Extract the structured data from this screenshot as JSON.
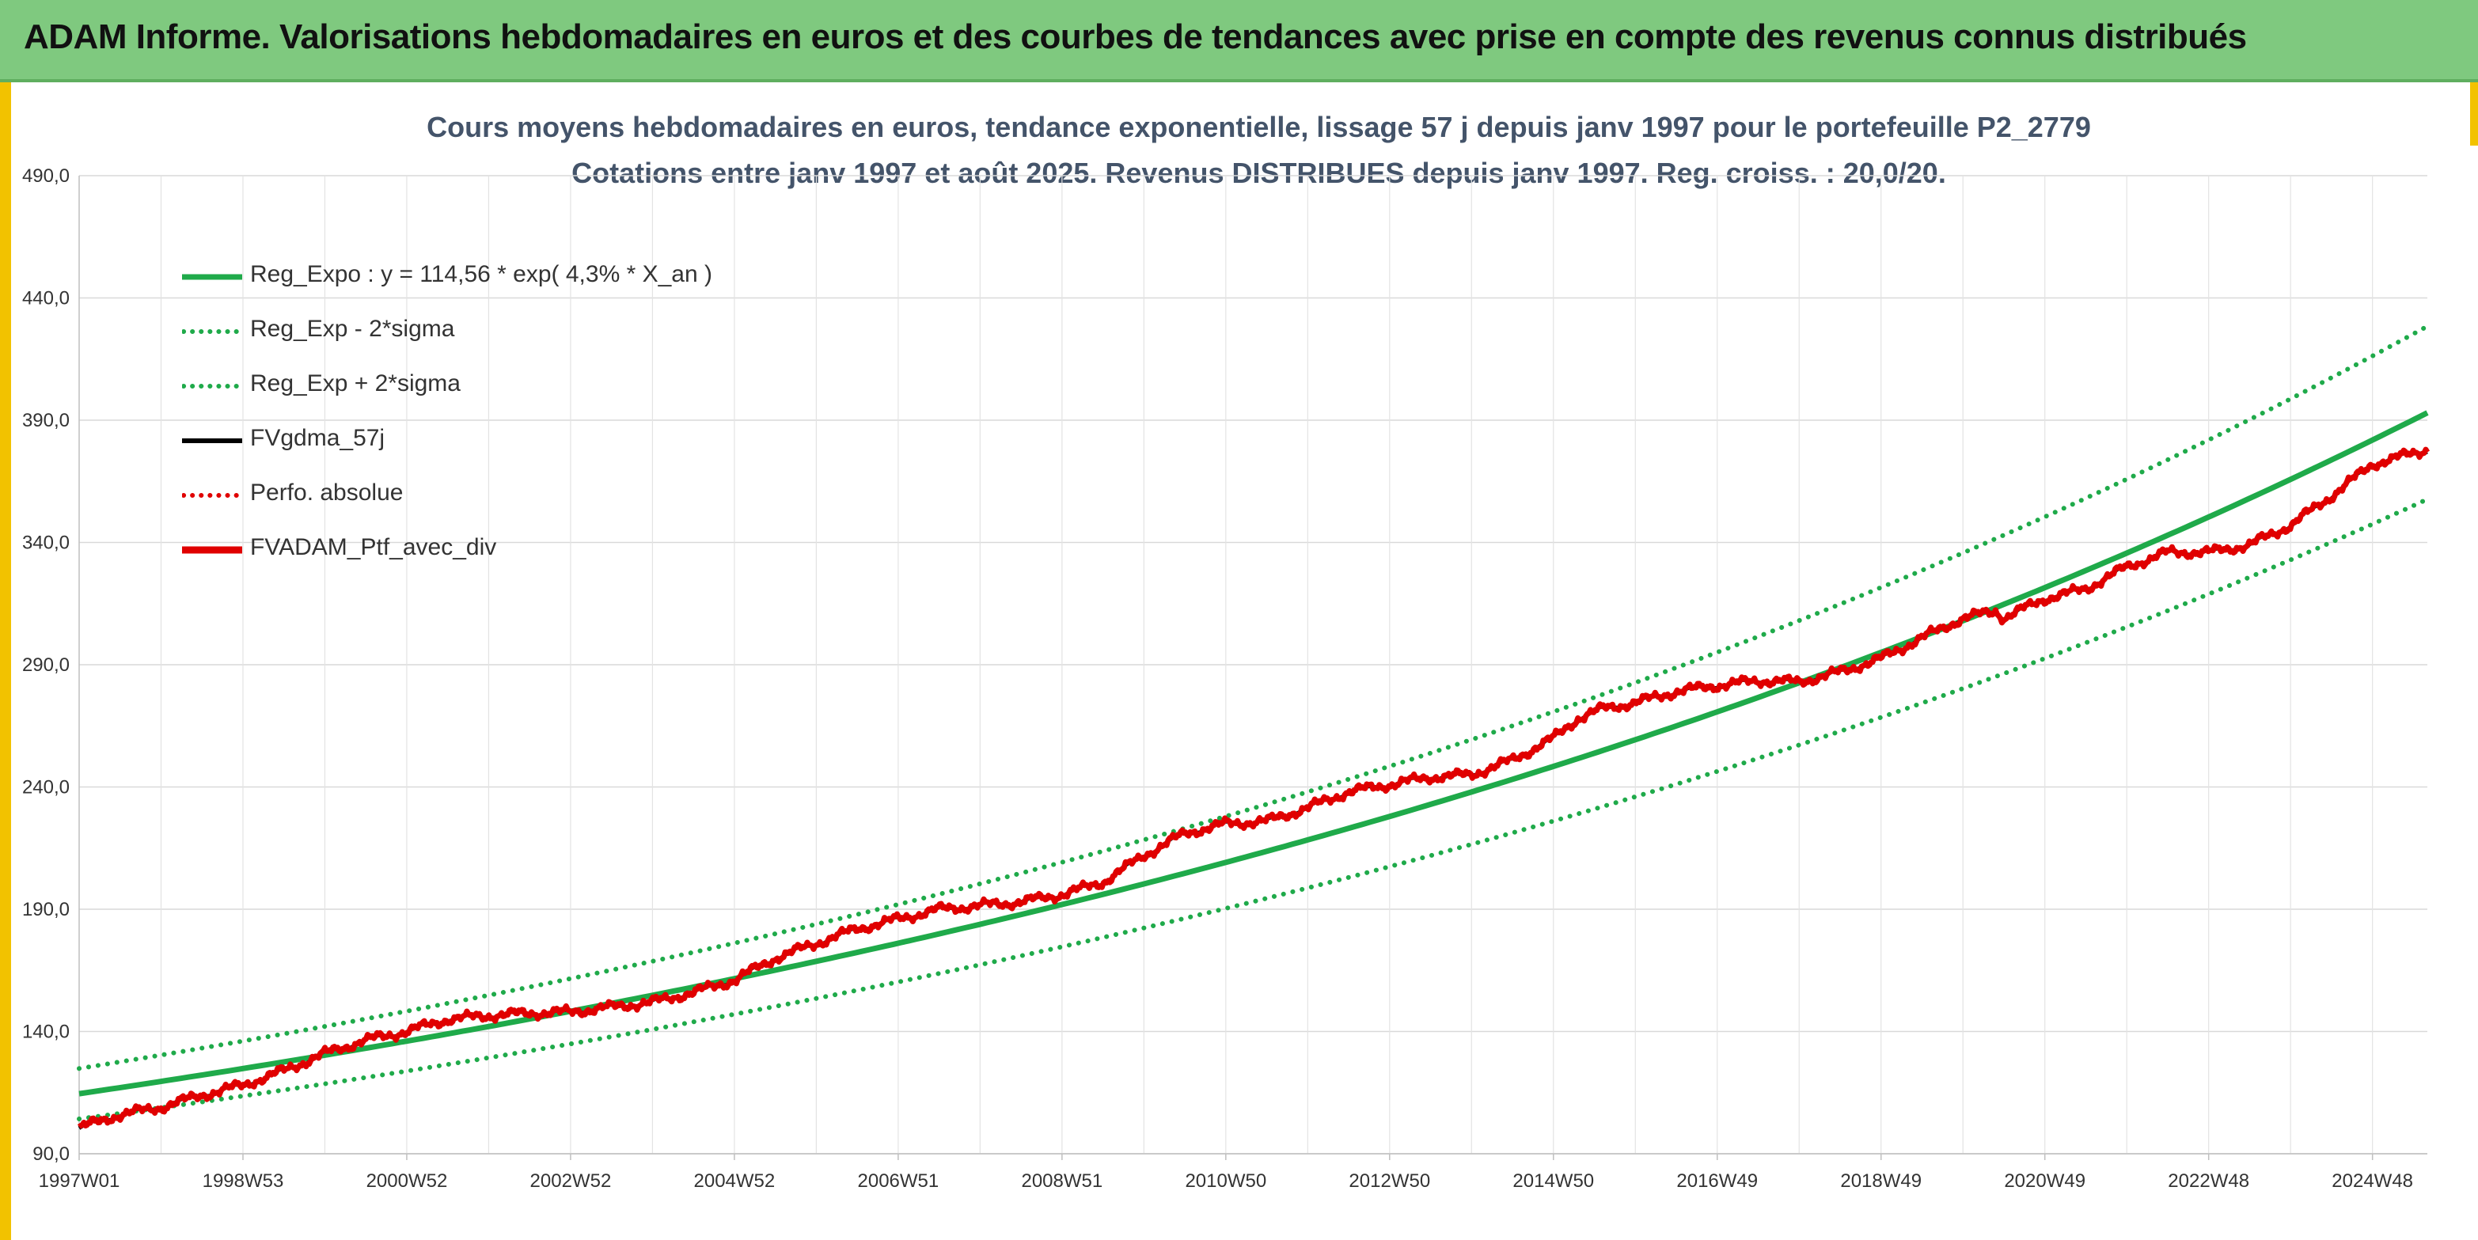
{
  "banner": {
    "title": "ADAM Informe. Valorisations hebdomadaires en euros et des courbes de tendances avec prise en compte des revenus connus distribués"
  },
  "chart_data": {
    "type": "line",
    "title": "Cours moyens hebdomadaires en euros, tendance exponentielle, lissage 57 j depuis janv 1997 pour le portefeuille P2_2779",
    "subtitle": "Cotations entre janv 1997 et août 2025. Revenus DISTRIBUES depuis janv 1997. Reg. croiss. : 20,0/20.",
    "xlabel": "",
    "ylabel": "",
    "ylim": [
      90,
      490
    ],
    "yticks": [
      "90,0",
      "140,0",
      "190,0",
      "240,0",
      "290,0",
      "340,0",
      "390,0",
      "440,0",
      "490,0"
    ],
    "xticks": [
      "1997W01",
      "1998W53",
      "2000W52",
      "2002W52",
      "2004W52",
      "2006W51",
      "2008W51",
      "2010W50",
      "2012W50",
      "2014W50",
      "2016W49",
      "2018W49",
      "2020W49",
      "2022W48",
      "2024W48"
    ],
    "x_years": [
      1997.0,
      1999.0,
      2001.0,
      2003.0,
      2005.0,
      2007.0,
      2009.0,
      2011.0,
      2013.0,
      2015.0,
      2017.0,
      2019.0,
      2021.0,
      2023.0,
      2025.0
    ],
    "xlim_years": [
      1997.0,
      2025.67
    ],
    "grid": true,
    "legend_position": "top-left",
    "regression": {
      "a": 114.56,
      "rate": 0.043,
      "sigma_ratio": 0.09
    },
    "series": [
      {
        "name": "Reg_Expo : y = 114,56 * exp( 4,3% *  X_an )",
        "color": "#1faa4a",
        "style": "solid"
      },
      {
        "name": "Reg_Exp - 2*sigma",
        "color": "#1faa4a",
        "style": "dotted"
      },
      {
        "name": "Reg_Exp + 2*sigma",
        "color": "#1faa4a",
        "style": "dotted"
      },
      {
        "name": "FVgdma_57j",
        "color": "#000000",
        "style": "solid"
      },
      {
        "name": "Perfo. absolue",
        "color": "#e00000",
        "style": "dotted"
      },
      {
        "name": "FVADAM_Ptf_avec_div",
        "color": "#e00000",
        "style": "solid",
        "points": [
          [
            1997.0,
            100.5
          ],
          [
            1997.5,
            106.0
          ],
          [
            1998.0,
            109.0
          ],
          [
            1998.5,
            114.0
          ],
          [
            1999.0,
            118.0
          ],
          [
            1999.5,
            124.0
          ],
          [
            2000.0,
            131.0
          ],
          [
            2000.5,
            136.5
          ],
          [
            2001.0,
            140.0
          ],
          [
            2001.5,
            145.0
          ],
          [
            2002.0,
            146.5
          ],
          [
            2002.5,
            147.5
          ],
          [
            2003.0,
            148.0
          ],
          [
            2003.5,
            150.0
          ],
          [
            2004.0,
            152.0
          ],
          [
            2004.5,
            156.0
          ],
          [
            2005.0,
            161.0
          ],
          [
            2005.5,
            170.0
          ],
          [
            2006.0,
            176.0
          ],
          [
            2006.5,
            182.0
          ],
          [
            2007.0,
            186.0
          ],
          [
            2007.5,
            190.0
          ],
          [
            2008.0,
            191.5
          ],
          [
            2008.5,
            193.0
          ],
          [
            2009.0,
            196.0
          ],
          [
            2009.5,
            201.0
          ],
          [
            2010.0,
            212.0
          ],
          [
            2010.5,
            221.0
          ],
          [
            2011.0,
            225.0
          ],
          [
            2011.5,
            226.0
          ],
          [
            2012.0,
            231.5
          ],
          [
            2012.5,
            238.0
          ],
          [
            2013.0,
            241.0
          ],
          [
            2013.5,
            244.0
          ],
          [
            2014.0,
            245.0
          ],
          [
            2014.5,
            251.0
          ],
          [
            2015.0,
            260.0
          ],
          [
            2015.3,
            268.0
          ],
          [
            2015.6,
            272.0
          ],
          [
            2016.0,
            274.5
          ],
          [
            2016.5,
            279.0
          ],
          [
            2017.0,
            281.5
          ],
          [
            2017.5,
            283.5
          ],
          [
            2018.0,
            283.0
          ],
          [
            2018.5,
            287.0
          ],
          [
            2019.0,
            292.5
          ],
          [
            2019.5,
            301.0
          ],
          [
            2020.0,
            309.0
          ],
          [
            2020.4,
            312.0
          ],
          [
            2020.5,
            309.0
          ],
          [
            2021.0,
            317.0
          ],
          [
            2021.5,
            321.0
          ],
          [
            2022.0,
            330.0
          ],
          [
            2022.5,
            336.0
          ],
          [
            2023.0,
            336.0
          ],
          [
            2023.5,
            339.0
          ],
          [
            2024.0,
            347.0
          ],
          [
            2024.5,
            359.0
          ],
          [
            2025.0,
            372.0
          ],
          [
            2025.67,
            378.0
          ]
        ]
      }
    ]
  }
}
